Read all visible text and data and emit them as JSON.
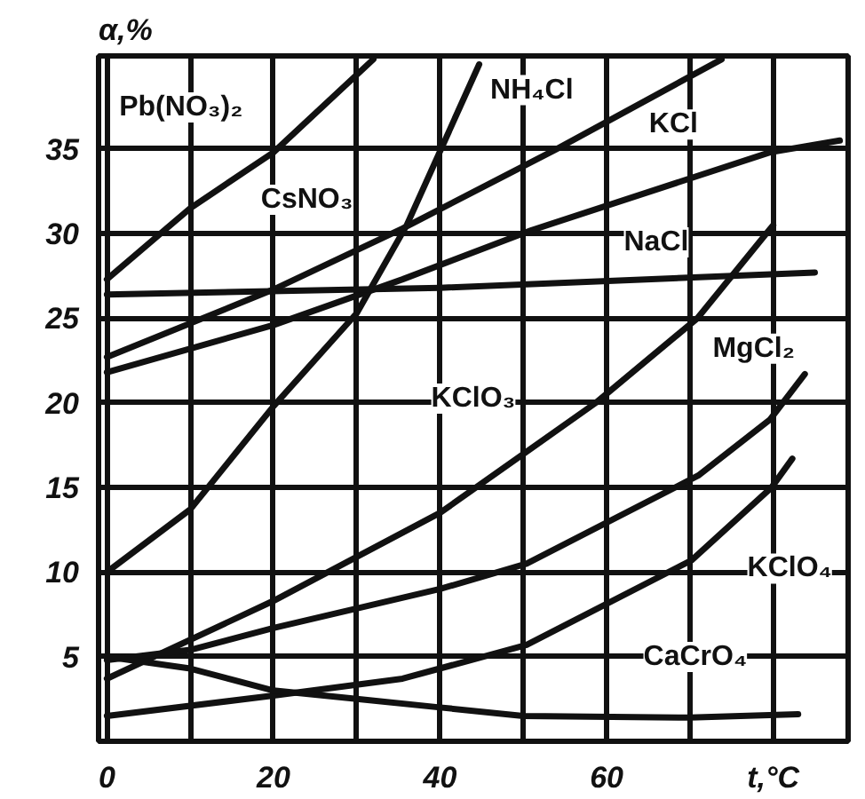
{
  "chart_data": {
    "type": "line",
    "ylabel": "α,%",
    "xlim": [
      -1,
      89
    ],
    "ylim": [
      0,
      40.5
    ],
    "xticks": [
      0,
      {
        "value": 10,
        "label": null
      },
      20,
      {
        "value": 30,
        "label": null
      },
      40,
      {
        "value": 50,
        "label": null
      },
      60,
      {
        "value": 70,
        "label": null
      },
      {
        "value": 80,
        "label": "t,°C"
      }
    ],
    "yticks": [
      5,
      10,
      15,
      20,
      25,
      30,
      35
    ],
    "grid": true,
    "line_style": "solid",
    "series": [
      {
        "color": "#111111",
        "x": [
          0,
          10,
          20,
          32
        ],
        "values": [
          27.3,
          31.5,
          34.8,
          40.3
        ]
      },
      {
        "color": "#111111",
        "x": [
          0,
          10,
          20,
          30,
          36,
          44.7
        ],
        "values": [
          10,
          13.7,
          19.8,
          25.3,
          30.5,
          40
        ]
      },
      {
        "color": "#111111",
        "x": [
          0,
          20,
          35.5,
          54,
          73.8
        ],
        "values": [
          22.7,
          26.7,
          30.3,
          35,
          40.3
        ]
      },
      {
        "color": "#111111",
        "x": [
          0,
          20,
          35.5,
          51,
          79.6,
          88
        ],
        "values": [
          21.8,
          24.6,
          27.3,
          30.2,
          34.8,
          35.5
        ]
      },
      {
        "color": "#111111",
        "x": [
          0,
          40,
          85
        ],
        "values": [
          26.4,
          26.8,
          27.7
        ]
      },
      {
        "color": "#111111",
        "x": [
          0,
          20,
          40,
          58.7,
          70.9,
          80
        ],
        "values": [
          3.7,
          8.3,
          13.5,
          20,
          25,
          30.5
        ]
      },
      {
        "color": "#111111",
        "x": [
          0,
          10,
          20,
          40,
          50.4,
          71,
          79.6,
          83.8
        ],
        "values": [
          4.8,
          5.4,
          6.7,
          9,
          10.5,
          15.7,
          19,
          21.7
        ]
      },
      {
        "color": "#111111",
        "x": [
          0,
          20,
          35.5,
          50.4,
          70.2,
          79.8,
          82.3
        ],
        "values": [
          1.5,
          2.7,
          3.7,
          5.7,
          10.7,
          15,
          16.7
        ]
      },
      {
        "color": "#111111",
        "x": [
          0,
          10,
          20,
          30,
          40,
          50,
          70,
          83
        ],
        "values": [
          5,
          4.3,
          3,
          2.5,
          2,
          1.5,
          1.4,
          1.6
        ]
      }
    ],
    "annotations": [
      "Pb(NO₃)₂",
      "CsNO₃",
      "NH₄Cl",
      "KCl",
      "NaCl",
      "KClO₃",
      "MgCl₂",
      "KClO₄",
      "CaCrO₄"
    ]
  }
}
